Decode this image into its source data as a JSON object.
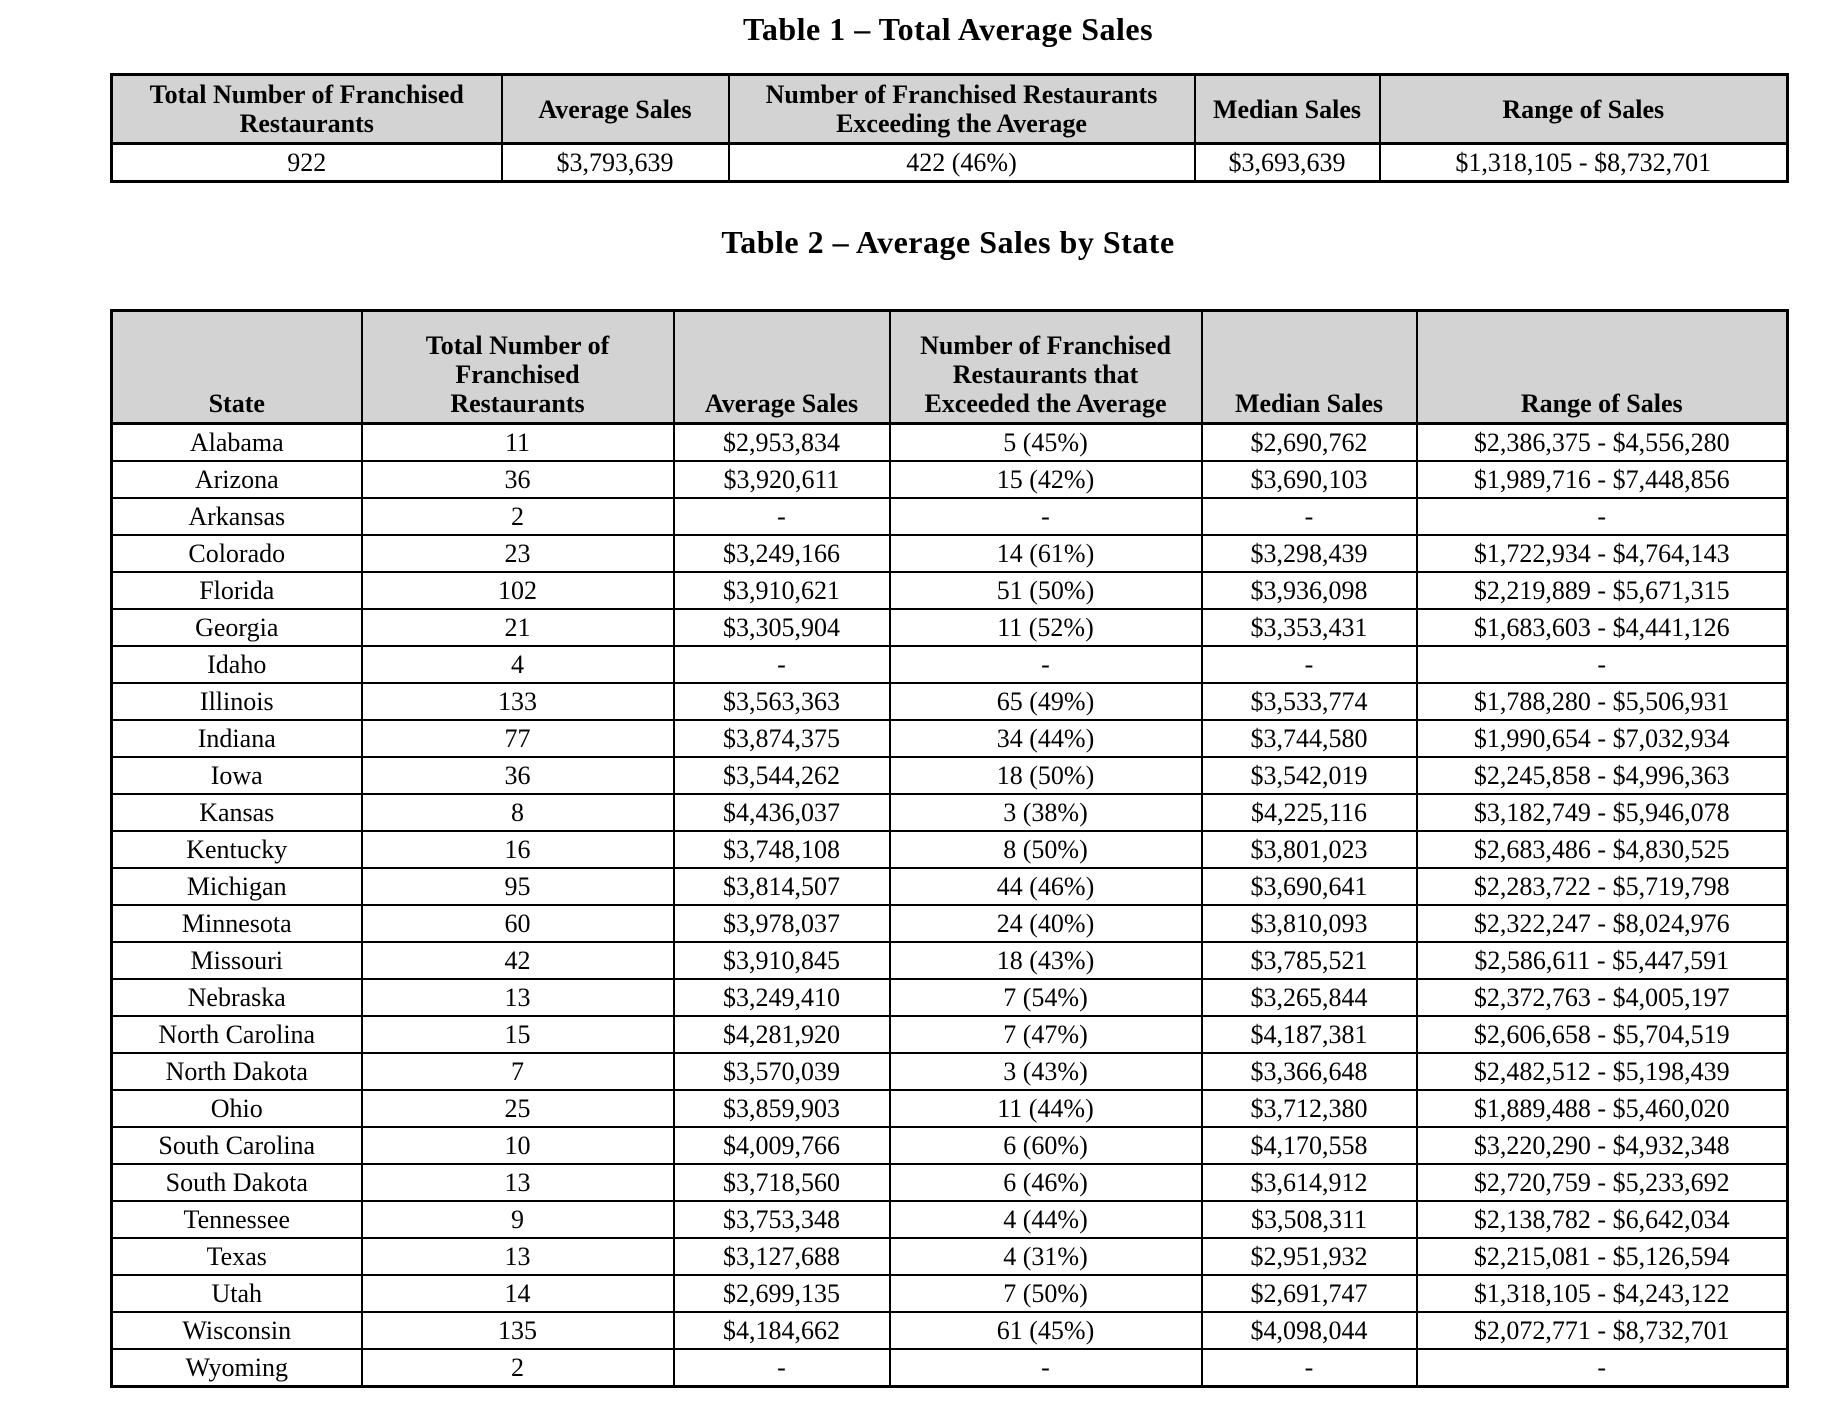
{
  "colors": {
    "header_bg": "#d3d3d3",
    "border": "#000000",
    "text": "#000000",
    "page_bg": "#ffffff"
  },
  "table1": {
    "title": "Table 1 – Total Average Sales",
    "headers": [
      "Total Number of Franchised\nRestaurants",
      "Average Sales",
      "Number of Franchised Restaurants\nExceeding the Average",
      "Median Sales",
      "Range of Sales"
    ],
    "row": [
      "922",
      "$3,793,639",
      "422 (46%)",
      "$3,693,639",
      "$1,318,105 - $8,732,701"
    ]
  },
  "table2": {
    "title": "Table 2 – Average Sales by State",
    "headers": [
      "State",
      "Total Number of\nFranchised\nRestaurants",
      "Average Sales",
      "Number of Franchised\nRestaurants that\nExceeded the Average",
      "Median Sales",
      "Range of Sales"
    ],
    "rows": [
      [
        "Alabama",
        "11",
        "$2,953,834",
        "5 (45%)",
        "$2,690,762",
        "$2,386,375 - $4,556,280"
      ],
      [
        "Arizona",
        "36",
        "$3,920,611",
        "15 (42%)",
        "$3,690,103",
        "$1,989,716 - $7,448,856"
      ],
      [
        "Arkansas",
        "2",
        "-",
        "-",
        "-",
        "-"
      ],
      [
        "Colorado",
        "23",
        "$3,249,166",
        "14 (61%)",
        "$3,298,439",
        "$1,722,934 - $4,764,143"
      ],
      [
        "Florida",
        "102",
        "$3,910,621",
        "51 (50%)",
        "$3,936,098",
        "$2,219,889 - $5,671,315"
      ],
      [
        "Georgia",
        "21",
        "$3,305,904",
        "11 (52%)",
        "$3,353,431",
        "$1,683,603 - $4,441,126"
      ],
      [
        "Idaho",
        "4",
        "-",
        "-",
        "-",
        "-"
      ],
      [
        "Illinois",
        "133",
        "$3,563,363",
        "65 (49%)",
        "$3,533,774",
        "$1,788,280 - $5,506,931"
      ],
      [
        "Indiana",
        "77",
        "$3,874,375",
        "34 (44%)",
        "$3,744,580",
        "$1,990,654 - $7,032,934"
      ],
      [
        "Iowa",
        "36",
        "$3,544,262",
        "18 (50%)",
        "$3,542,019",
        "$2,245,858 - $4,996,363"
      ],
      [
        "Kansas",
        "8",
        "$4,436,037",
        "3 (38%)",
        "$4,225,116",
        "$3,182,749 - $5,946,078"
      ],
      [
        "Kentucky",
        "16",
        "$3,748,108",
        "8 (50%)",
        "$3,801,023",
        "$2,683,486 - $4,830,525"
      ],
      [
        "Michigan",
        "95",
        "$3,814,507",
        "44 (46%)",
        "$3,690,641",
        "$2,283,722 - $5,719,798"
      ],
      [
        "Minnesota",
        "60",
        "$3,978,037",
        "24 (40%)",
        "$3,810,093",
        "$2,322,247 - $8,024,976"
      ],
      [
        "Missouri",
        "42",
        "$3,910,845",
        "18 (43%)",
        "$3,785,521",
        "$2,586,611 - $5,447,591"
      ],
      [
        "Nebraska",
        "13",
        "$3,249,410",
        "7 (54%)",
        "$3,265,844",
        "$2,372,763 - $4,005,197"
      ],
      [
        "North Carolina",
        "15",
        "$4,281,920",
        "7 (47%)",
        "$4,187,381",
        "$2,606,658 - $5,704,519"
      ],
      [
        "North Dakota",
        "7",
        "$3,570,039",
        "3 (43%)",
        "$3,366,648",
        "$2,482,512 - $5,198,439"
      ],
      [
        "Ohio",
        "25",
        "$3,859,903",
        "11 (44%)",
        "$3,712,380",
        "$1,889,488 - $5,460,020"
      ],
      [
        "South Carolina",
        "10",
        "$4,009,766",
        "6 (60%)",
        "$4,170,558",
        "$3,220,290 - $4,932,348"
      ],
      [
        "South Dakota",
        "13",
        "$3,718,560",
        "6 (46%)",
        "$3,614,912",
        "$2,720,759 - $5,233,692"
      ],
      [
        "Tennessee",
        "9",
        "$3,753,348",
        "4 (44%)",
        "$3,508,311",
        "$2,138,782 - $6,642,034"
      ],
      [
        "Texas",
        "13",
        "$3,127,688",
        "4 (31%)",
        "$2,951,932",
        "$2,215,081 - $5,126,594"
      ],
      [
        "Utah",
        "14",
        "$2,699,135",
        "7 (50%)",
        "$2,691,747",
        "$1,318,105 - $4,243,122"
      ],
      [
        "Wisconsin",
        "135",
        "$4,184,662",
        "61 (45%)",
        "$4,098,044",
        "$2,072,771 - $8,732,701"
      ],
      [
        "Wyoming",
        "2",
        "-",
        "-",
        "-",
        "-"
      ]
    ]
  }
}
